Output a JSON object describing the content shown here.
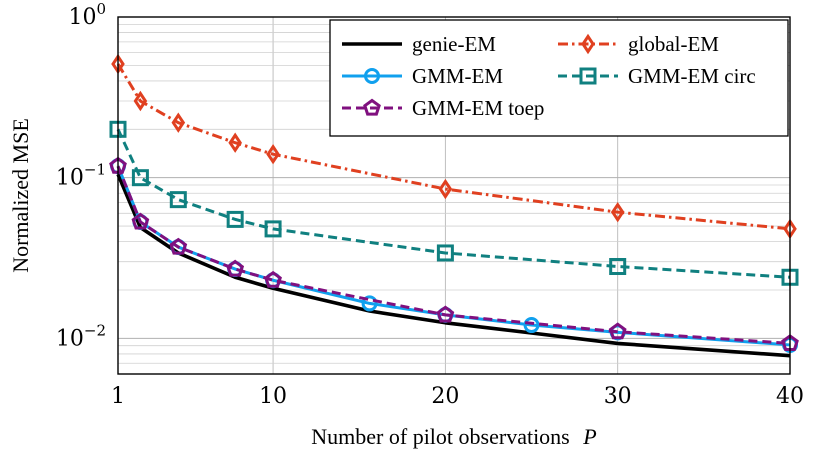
{
  "chart_data": {
    "type": "line",
    "xlabel": "Number of pilot observations",
    "xlabel_var": "P",
    "ylabel": "Normalized MSE",
    "xlim": [
      1,
      40
    ],
    "ylim": [
      0.006,
      1
    ],
    "yscale": "log",
    "grid": true,
    "legend_position": "top-right",
    "x_ticks": [
      1,
      10,
      20,
      30,
      40
    ],
    "y_ticks": [
      {
        "value": 1,
        "base": "10",
        "exp": "0"
      },
      {
        "value": 0.1,
        "base": "10",
        "exp": "−1"
      },
      {
        "value": 0.01,
        "base": "10",
        "exp": "−2"
      }
    ],
    "series": [
      {
        "name": "genie-EM",
        "color": "#000000",
        "dash": "solid",
        "marker": "none",
        "x": [
          1,
          2.3,
          4.5,
          7.8,
          10,
          15.6,
          20,
          25,
          30,
          40
        ],
        "y": [
          0.105,
          0.049,
          0.034,
          0.024,
          0.0205,
          0.0148,
          0.0125,
          0.0108,
          0.0093,
          0.0078
        ]
      },
      {
        "name": "global-EM",
        "color": "#e04020",
        "dash": "dashdot",
        "marker": "diamond",
        "x": [
          1,
          2.3,
          4.5,
          7.8,
          10,
          20,
          30,
          40
        ],
        "y": [
          0.51,
          0.3,
          0.22,
          0.165,
          0.14,
          0.085,
          0.061,
          0.048
        ]
      },
      {
        "name": "GMM-EM",
        "color": "#10a0ee",
        "dash": "solid",
        "marker": "circle",
        "x": [
          1,
          2.3,
          4.5,
          7.8,
          10,
          15.6,
          20,
          25,
          30,
          40
        ],
        "y": [
          0.118,
          0.053,
          0.037,
          0.027,
          0.023,
          0.0165,
          0.014,
          0.0121,
          0.0109,
          0.0091
        ]
      },
      {
        "name": "GMM-EM circ",
        "color": "#108080",
        "dash": "dashed",
        "marker": "square",
        "x": [
          1,
          2.3,
          4.5,
          7.8,
          10,
          20,
          30,
          40
        ],
        "y": [
          0.2,
          0.1,
          0.073,
          0.055,
          0.048,
          0.034,
          0.028,
          0.024
        ]
      },
      {
        "name": "GMM-EM toep",
        "color": "#80107f",
        "dash": "dashed",
        "marker": "pentagon",
        "x": [
          1,
          2.3,
          4.5,
          7.8,
          10,
          20,
          30,
          40
        ],
        "y": [
          0.118,
          0.053,
          0.037,
          0.027,
          0.023,
          0.014,
          0.011,
          0.0093
        ]
      }
    ]
  }
}
